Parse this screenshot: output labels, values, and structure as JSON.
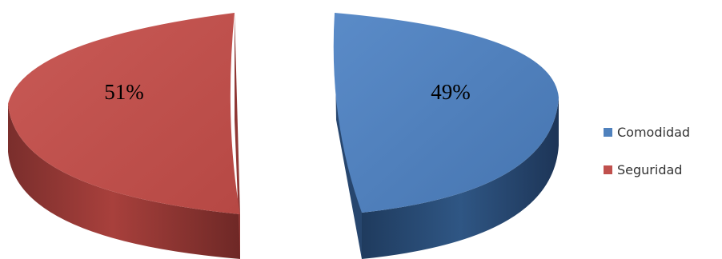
{
  "chart_data": {
    "type": "pie",
    "style": "3d-exploded",
    "title": "",
    "legend_position": "right",
    "slices": [
      {
        "name": "Comodidad",
        "value": 49,
        "label": "49%",
        "color": "#4f81bd"
      },
      {
        "name": "Seguridad",
        "value": 51,
        "label": "51%",
        "color": "#c0504d"
      }
    ]
  }
}
